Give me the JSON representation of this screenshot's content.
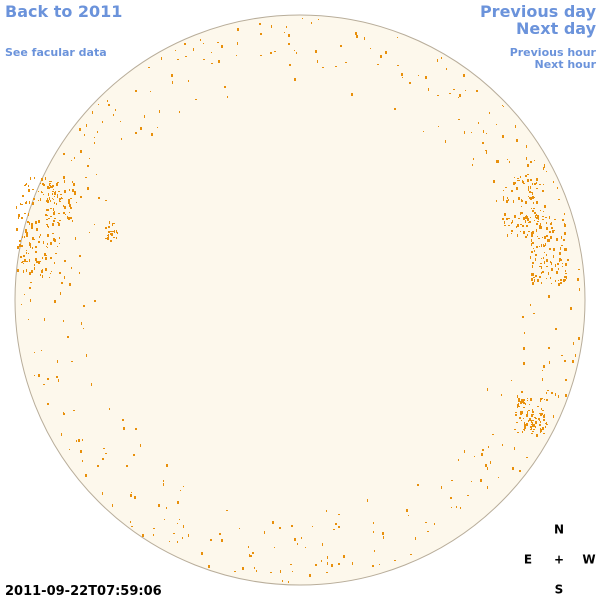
{
  "links": {
    "back": "Back to 2011",
    "facular": "See facular data",
    "previous_day": "Previous day",
    "next_day": "Next day",
    "previous_hour": "Previous hour",
    "next_hour": "Next hour"
  },
  "compass": {
    "north": "N",
    "east": "E",
    "center": "+",
    "west": "W",
    "south": "S"
  },
  "timestamp": "2011-09-22T07:59:06"
}
